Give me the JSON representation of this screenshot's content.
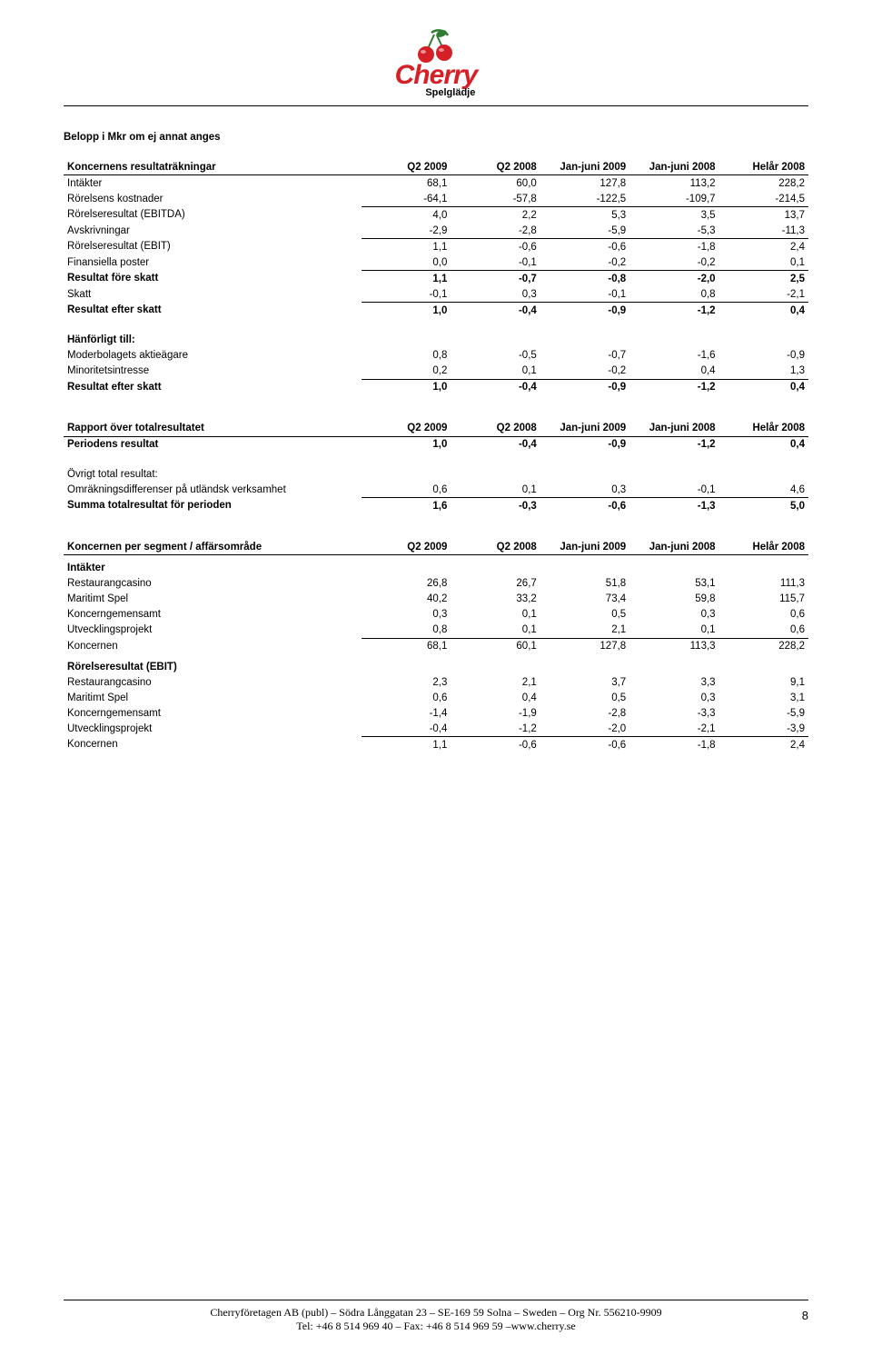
{
  "brand": {
    "name": "Cherry",
    "tagline": "Spelglädje",
    "color": "#d62027",
    "leaf_color": "#2e7d32"
  },
  "note": "Belopp i Mkr om ej annat anges",
  "tables": {
    "t1": {
      "title": "Koncernens resultaträkningar",
      "cols": [
        "Q2 2009",
        "Q2 2008",
        "Jan-juni 2009",
        "Jan-juni 2008",
        "Helår 2008"
      ],
      "rows": [
        {
          "label": "Intäkter",
          "v": [
            "68,1",
            "60,0",
            "127,8",
            "113,2",
            "228,2"
          ]
        },
        {
          "label": "Rörelsens kostnader",
          "v": [
            "-64,1",
            "-57,8",
            "-122,5",
            "-109,7",
            "-214,5"
          ],
          "ul": true
        },
        {
          "label": "Rörelseresultat (EBITDA)",
          "v": [
            "4,0",
            "2,2",
            "5,3",
            "3,5",
            "13,7"
          ]
        },
        {
          "label": "Avskrivningar",
          "v": [
            "-2,9",
            "-2,8",
            "-5,9",
            "-5,3",
            "-11,3"
          ],
          "ul": true
        },
        {
          "label": "Rörelseresultat (EBIT)",
          "v": [
            "1,1",
            "-0,6",
            "-0,6",
            "-1,8",
            "2,4"
          ]
        },
        {
          "label": "Finansiella poster",
          "v": [
            "0,0",
            "-0,1",
            "-0,2",
            "-0,2",
            "0,1"
          ],
          "ul": true
        },
        {
          "label": "Resultat före skatt",
          "v": [
            "1,1",
            "-0,7",
            "-0,8",
            "-2,0",
            "2,5"
          ],
          "bold": true
        },
        {
          "label": "Skatt",
          "v": [
            "-0,1",
            "0,3",
            "-0,1",
            "0,8",
            "-2,1"
          ],
          "ul": true
        },
        {
          "label": "Resultat efter skatt",
          "v": [
            "1,0",
            "-0,4",
            "-0,9",
            "-1,2",
            "0,4"
          ],
          "bold": true
        },
        {
          "label": "Hänförligt till:",
          "section": true
        },
        {
          "label": "Moderbolagets aktieägare",
          "v": [
            "0,8",
            "-0,5",
            "-0,7",
            "-1,6",
            "-0,9"
          ]
        },
        {
          "label": "Minoritetsintresse",
          "v": [
            "0,2",
            "0,1",
            "-0,2",
            "0,4",
            "1,3"
          ],
          "ul": true
        },
        {
          "label": "Resultat efter skatt",
          "v": [
            "1,0",
            "-0,4",
            "-0,9",
            "-1,2",
            "0,4"
          ],
          "bold": true
        }
      ]
    },
    "t2": {
      "title": "Rapport över totalresultatet",
      "cols": [
        "Q2 2009",
        "Q2 2008",
        "Jan-juni 2009",
        "Jan-juni 2008",
        "Helår 2008"
      ],
      "rows": [
        {
          "label": "Periodens resultat",
          "v": [
            "1,0",
            "-0,4",
            "-0,9",
            "-1,2",
            "0,4"
          ],
          "bold": true
        },
        {
          "label": "Övrigt total resultat:",
          "section": true,
          "plain": true
        },
        {
          "label": "Omräkningsdifferenser på utländsk verksamhet",
          "v": [
            "0,6",
            "0,1",
            "0,3",
            "-0,1",
            "4,6"
          ],
          "ul": true
        },
        {
          "label": "Summa totalresultat för perioden",
          "v": [
            "1,6",
            "-0,3",
            "-0,6",
            "-1,3",
            "5,0"
          ],
          "bold": true
        }
      ]
    },
    "t3": {
      "title": "Koncernen per segment / affärsområde",
      "cols": [
        "Q2 2009",
        "Q2 2008",
        "Jan-juni 2009",
        "Jan-juni 2008",
        "Helår 2008"
      ],
      "rows": [
        {
          "label": "Intäkter",
          "section": true
        },
        {
          "label": "Restaurangcasino",
          "v": [
            "26,8",
            "26,7",
            "51,8",
            "53,1",
            "111,3"
          ]
        },
        {
          "label": "Maritimt Spel",
          "v": [
            "40,2",
            "33,2",
            "73,4",
            "59,8",
            "115,7"
          ]
        },
        {
          "label": "Koncerngemensamt",
          "v": [
            "0,3",
            "0,1",
            "0,5",
            "0,3",
            "0,6"
          ]
        },
        {
          "label": "Utvecklingsprojekt",
          "v": [
            "0,8",
            "0,1",
            "2,1",
            "0,1",
            "0,6"
          ],
          "ul": true
        },
        {
          "label": "Koncernen",
          "v": [
            "68,1",
            "60,1",
            "127,8",
            "113,3",
            "228,2"
          ]
        },
        {
          "label": "Rörelseresultat (EBIT)",
          "section": true
        },
        {
          "label": "Restaurangcasino",
          "v": [
            "2,3",
            "2,1",
            "3,7",
            "3,3",
            "9,1"
          ]
        },
        {
          "label": "Maritimt Spel",
          "v": [
            "0,6",
            "0,4",
            "0,5",
            "0,3",
            "3,1"
          ]
        },
        {
          "label": "Koncerngemensamt",
          "v": [
            "-1,4",
            "-1,9",
            "-2,8",
            "-3,3",
            "-5,9"
          ]
        },
        {
          "label": "Utvecklingsprojekt",
          "v": [
            "-0,4",
            "-1,2",
            "-2,0",
            "-2,1",
            "-3,9"
          ],
          "ul": true
        },
        {
          "label": "Koncernen",
          "v": [
            "1,1",
            "-0,6",
            "-0,6",
            "-1,8",
            "2,4"
          ]
        }
      ]
    }
  },
  "footer": {
    "line1": "Cherryföretagen AB (publ) – Södra Långgatan 23 – SE-169 59 Solna – Sweden – Org Nr. 556210-9909",
    "line2": "Tel: +46 8 514 969 40 – Fax: +46 8 514 969 59 –www.cherry.se",
    "page": "8"
  }
}
